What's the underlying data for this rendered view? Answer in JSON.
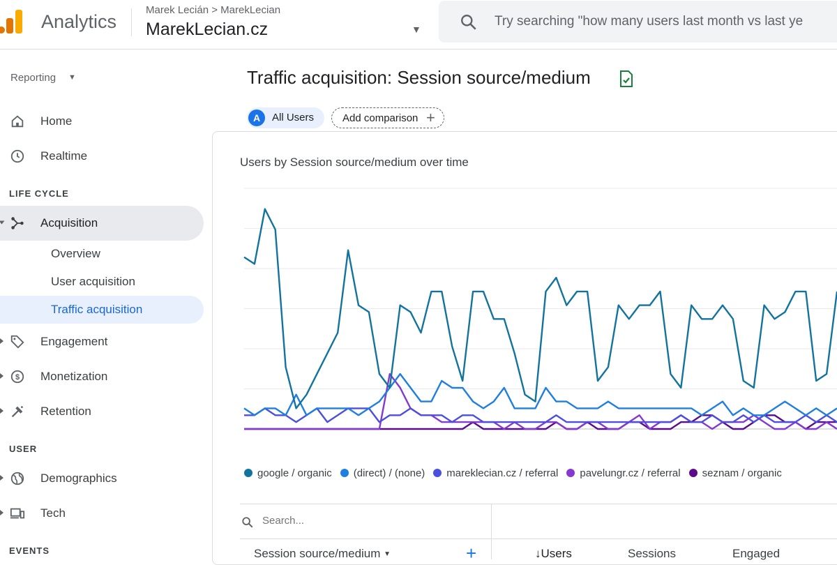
{
  "app": {
    "name": "Analytics"
  },
  "breadcrumb": {
    "account": "Marek Lecián",
    "separator": ">",
    "property_path": "MarekLecian"
  },
  "property": {
    "name": "MarekLecian.cz"
  },
  "search": {
    "placeholder": "Try searching \"how many users last month vs last ye"
  },
  "sidebar": {
    "reporting_label": "Reporting",
    "items_top": [
      {
        "label": "Home",
        "icon": "home-icon"
      },
      {
        "label": "Realtime",
        "icon": "clock-icon"
      }
    ],
    "section_lifecycle": "LIFE CYCLE",
    "acquisition": {
      "label": "Acquisition",
      "icon": "acquisition-icon"
    },
    "acquisition_sub": [
      {
        "label": "Overview"
      },
      {
        "label": "User acquisition"
      },
      {
        "label": "Traffic acquisition"
      }
    ],
    "lifecycle_items": [
      {
        "label": "Engagement",
        "icon": "tag-icon"
      },
      {
        "label": "Monetization",
        "icon": "dollar-icon"
      },
      {
        "label": "Retention",
        "icon": "retention-icon"
      }
    ],
    "section_user": "USER",
    "user_items": [
      {
        "label": "Demographics",
        "icon": "globe-icon"
      },
      {
        "label": "Tech",
        "icon": "devices-icon"
      }
    ],
    "section_events": "EVENTS"
  },
  "page": {
    "title": "Traffic acquisition: Session source/medium",
    "segment_badge": "A",
    "segment_label": "All Users",
    "add_comparison": "Add comparison",
    "chart_title": "Users by Session source/medium over time"
  },
  "colors": {
    "google_organic": "#12739e",
    "direct": "#1f7fe0",
    "mareklecian_referral": "#4b4fe0",
    "pavelungr_referral": "#8439d1",
    "seznam_organic": "#5a0a8a"
  },
  "chart_data": {
    "type": "line",
    "x": [
      1,
      2,
      3,
      4,
      5,
      6,
      7,
      8,
      9,
      10,
      11,
      12,
      13,
      14,
      15,
      16,
      17,
      18,
      19,
      20,
      21,
      22,
      23,
      24,
      25,
      26,
      27,
      28,
      29,
      30,
      31,
      32,
      33,
      34,
      35,
      36,
      37,
      38,
      39,
      40,
      41,
      42,
      43,
      44,
      45,
      46,
      47,
      48,
      49,
      50,
      51,
      52,
      53,
      54,
      55,
      56,
      57,
      58
    ],
    "ylim": [
      0,
      35
    ],
    "grid": true,
    "legend_position": "bottom",
    "series": [
      {
        "name": "google / organic",
        "color_key": "google_organic",
        "values": [
          25,
          24,
          32,
          29,
          9,
          3,
          5,
          8,
          11,
          14,
          26,
          18,
          17,
          8,
          6,
          18,
          17,
          14,
          20,
          20,
          12,
          7,
          20,
          20,
          16,
          16,
          11,
          5,
          4,
          20,
          22,
          18,
          20,
          20,
          7,
          9,
          18,
          16,
          18,
          18,
          20,
          8,
          6,
          18,
          16,
          16,
          18,
          16,
          7,
          6,
          18,
          16,
          17,
          20,
          20,
          7,
          8,
          20
        ]
      },
      {
        "name": "(direct) / (none)",
        "color_key": "direct",
        "values": [
          3,
          2,
          3,
          3,
          2,
          5,
          2,
          3,
          3,
          3,
          3,
          2,
          3,
          4,
          6,
          8,
          6,
          4,
          4,
          7,
          6,
          6,
          4,
          3,
          4,
          6,
          3,
          3,
          3,
          6,
          4,
          4,
          3,
          3,
          3,
          4,
          3,
          3,
          3,
          3,
          3,
          3,
          3,
          3,
          2,
          3,
          4,
          2,
          3,
          2,
          2,
          3,
          4,
          3,
          2,
          3,
          2,
          3
        ]
      },
      {
        "name": "mareklecian.cz / referral",
        "color_key": "mareklecian_referral",
        "values": [
          2,
          2,
          3,
          2,
          2,
          1,
          2,
          3,
          1,
          2,
          3,
          3,
          3,
          1,
          2,
          2,
          3,
          2,
          2,
          2,
          1,
          2,
          2,
          1,
          1,
          1,
          1,
          1,
          1,
          1,
          2,
          1,
          1,
          1,
          1,
          1,
          1,
          1,
          1,
          1,
          1,
          1,
          2,
          1,
          1,
          2,
          1,
          1,
          2,
          1,
          2,
          1,
          1,
          1,
          2,
          1,
          2,
          1
        ]
      },
      {
        "name": "pavelungr.cz / referral",
        "color_key": "pavelungr_referral",
        "values": [
          0,
          0,
          0,
          0,
          0,
          0,
          0,
          0,
          0,
          0,
          0,
          0,
          0,
          0,
          8,
          6,
          3,
          2,
          2,
          1,
          1,
          1,
          1,
          1,
          1,
          0,
          1,
          0,
          0,
          1,
          1,
          0,
          0,
          1,
          1,
          0,
          0,
          1,
          2,
          0,
          1,
          1,
          2,
          1,
          1,
          0,
          1,
          1,
          1,
          2,
          1,
          0,
          0,
          1,
          0,
          0,
          1,
          0
        ]
      },
      {
        "name": "seznam / organic",
        "color_key": "seznam_organic",
        "values": [
          0,
          0,
          0,
          0,
          0,
          0,
          0,
          0,
          0,
          0,
          0,
          0,
          0,
          0,
          0,
          0,
          0,
          0,
          0,
          0,
          0,
          0,
          1,
          0,
          0,
          0,
          0,
          0,
          0,
          0,
          1,
          0,
          0,
          1,
          0,
          0,
          0,
          1,
          1,
          0,
          0,
          0,
          1,
          1,
          2,
          2,
          1,
          0,
          0,
          1,
          2,
          2,
          1,
          1,
          0,
          1,
          1,
          1
        ]
      }
    ]
  },
  "table": {
    "search_placeholder": "Search...",
    "dimension_header": "Session source/medium",
    "users_header": "↓Users",
    "sessions_header": "Sessions",
    "engaged_header": "Engaged"
  }
}
